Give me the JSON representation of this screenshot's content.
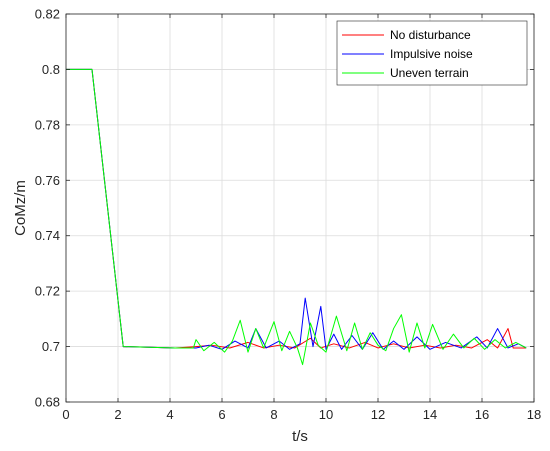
{
  "chart_data": {
    "type": "line",
    "xlabel": "t/s",
    "ylabel": "CoMz/m",
    "xlim": [
      0,
      18
    ],
    "ylim": [
      0.68,
      0.82
    ],
    "xticks": [
      0,
      2,
      4,
      6,
      8,
      10,
      12,
      14,
      16,
      18
    ],
    "yticks": [
      0.68,
      0.7,
      0.72,
      0.74,
      0.76,
      0.78,
      0.8,
      0.82
    ],
    "xtick_labels": [
      "0",
      "2",
      "4",
      "6",
      "8",
      "10",
      "12",
      "14",
      "16",
      "18"
    ],
    "ytick_labels": [
      "0.68",
      "0.7",
      "0.72",
      "0.74",
      "0.76",
      "0.78",
      "0.8",
      "0.82"
    ],
    "grid": true,
    "legend_position": "top-right",
    "series": [
      {
        "name": "No disturbance",
        "color": "#ff0000",
        "x": [
          0,
          1.0,
          2.2,
          4.2,
          5.0,
          5.6,
          6.3,
          7.0,
          7.6,
          8.2,
          8.8,
          9.4,
          9.8,
          10.3,
          10.9,
          11.5,
          12.0,
          12.6,
          13.2,
          13.8,
          14.4,
          15.0,
          15.6,
          16.2,
          16.6,
          17.0,
          17.2,
          17.7
        ],
        "y": [
          0.8,
          0.8,
          0.7,
          0.6995,
          0.7,
          0.7005,
          0.6995,
          0.7015,
          0.6995,
          0.7005,
          0.6995,
          0.703,
          0.6995,
          0.701,
          0.6995,
          0.7015,
          0.6995,
          0.701,
          0.6995,
          0.7005,
          0.6995,
          0.7005,
          0.6995,
          0.7025,
          0.6995,
          0.7065,
          0.6995,
          0.6995
        ]
      },
      {
        "name": "Impulsive noise",
        "color": "#0000ff",
        "x": [
          0,
          1.0,
          2.2,
          4.2,
          5.0,
          5.5,
          6.0,
          6.5,
          7.0,
          7.3,
          7.7,
          8.2,
          8.6,
          9.0,
          9.2,
          9.5,
          9.8,
          10.0,
          10.3,
          10.6,
          11.0,
          11.4,
          11.8,
          12.2,
          12.6,
          13.0,
          13.5,
          14.0,
          14.6,
          15.2,
          15.8,
          16.2,
          16.6,
          17.0,
          17.4,
          17.7
        ],
        "y": [
          0.8,
          0.8,
          0.7,
          0.6995,
          0.6995,
          0.7005,
          0.699,
          0.702,
          0.6995,
          0.7065,
          0.6995,
          0.702,
          0.699,
          0.701,
          0.7175,
          0.7,
          0.7145,
          0.699,
          0.7045,
          0.699,
          0.704,
          0.699,
          0.705,
          0.699,
          0.702,
          0.699,
          0.7035,
          0.699,
          0.7015,
          0.6995,
          0.7035,
          0.6995,
          0.7065,
          0.6995,
          0.701,
          0.6995
        ]
      },
      {
        "name": "Uneven terrain",
        "color": "#00ff00",
        "x": [
          0,
          1.0,
          2.2,
          4.2,
          4.9,
          5.0,
          5.3,
          5.7,
          6.1,
          6.4,
          6.7,
          7.0,
          7.3,
          7.6,
          8.0,
          8.3,
          8.6,
          8.9,
          9.1,
          9.4,
          9.7,
          10.0,
          10.4,
          10.8,
          11.1,
          11.4,
          11.7,
          12.0,
          12.3,
          12.6,
          12.9,
          13.2,
          13.5,
          13.8,
          14.1,
          14.5,
          14.9,
          15.3,
          15.7,
          16.1,
          16.5,
          16.9,
          17.3,
          17.7
        ],
        "y": [
          0.8,
          0.8,
          0.7,
          0.6995,
          0.6995,
          0.7025,
          0.6985,
          0.7015,
          0.698,
          0.702,
          0.7095,
          0.698,
          0.7065,
          0.6995,
          0.709,
          0.6985,
          0.7055,
          0.6995,
          0.6935,
          0.7085,
          0.7005,
          0.698,
          0.711,
          0.6985,
          0.7085,
          0.699,
          0.705,
          0.7005,
          0.6985,
          0.7065,
          0.7115,
          0.698,
          0.7085,
          0.6995,
          0.708,
          0.699,
          0.7045,
          0.6995,
          0.703,
          0.699,
          0.7025,
          0.6995,
          0.7015,
          0.6995
        ]
      }
    ]
  }
}
